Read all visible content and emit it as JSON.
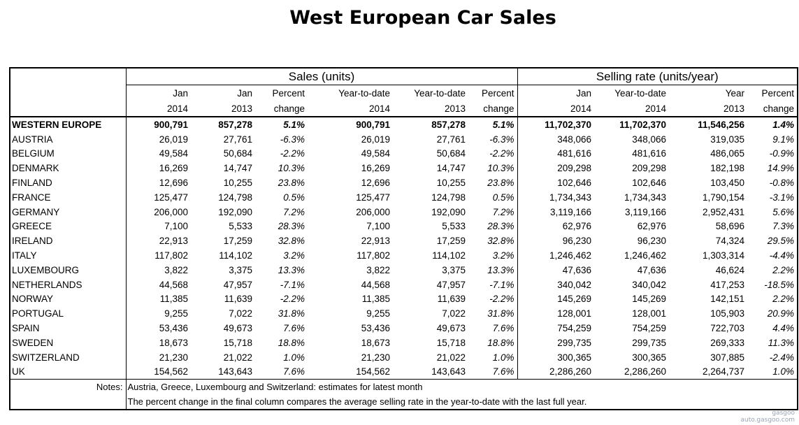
{
  "title": "West European Car Sales",
  "headers": {
    "sales_group": "Sales (units)",
    "rate_group": "Selling rate (units/year)",
    "row1": [
      "Jan",
      "Jan",
      "Percent",
      "Year-to-date",
      "Year-to-date",
      "Percent",
      "Jan",
      "Year-to-date",
      "Year",
      "Percent"
    ],
    "row2": [
      "2014",
      "2013",
      "change",
      "2014",
      "2013",
      "change",
      "2014",
      "2014",
      "2013",
      "change"
    ]
  },
  "rows": [
    {
      "country": "WESTERN EUROPE",
      "v": [
        "900,791",
        "857,278",
        "5.1%",
        "900,791",
        "857,278",
        "5.1%",
        "11,702,370",
        "11,702,370",
        "11,546,256",
        "1.4%"
      ]
    },
    {
      "country": "AUSTRIA",
      "v": [
        "26,019",
        "27,761",
        "-6.3%",
        "26,019",
        "27,761",
        "-6.3%",
        "348,066",
        "348,066",
        "319,035",
        "9.1%"
      ]
    },
    {
      "country": "BELGIUM",
      "v": [
        "49,584",
        "50,684",
        "-2.2%",
        "49,584",
        "50,684",
        "-2.2%",
        "481,616",
        "481,616",
        "486,065",
        "-0.9%"
      ]
    },
    {
      "country": "DENMARK",
      "v": [
        "16,269",
        "14,747",
        "10.3%",
        "16,269",
        "14,747",
        "10.3%",
        "209,298",
        "209,298",
        "182,198",
        "14.9%"
      ]
    },
    {
      "country": "FINLAND",
      "v": [
        "12,696",
        "10,255",
        "23.8%",
        "12,696",
        "10,255",
        "23.8%",
        "102,646",
        "102,646",
        "103,450",
        "-0.8%"
      ]
    },
    {
      "country": "FRANCE",
      "v": [
        "125,477",
        "124,798",
        "0.5%",
        "125,477",
        "124,798",
        "0.5%",
        "1,734,343",
        "1,734,343",
        "1,790,154",
        "-3.1%"
      ]
    },
    {
      "country": "GERMANY",
      "v": [
        "206,000",
        "192,090",
        "7.2%",
        "206,000",
        "192,090",
        "7.2%",
        "3,119,166",
        "3,119,166",
        "2,952,431",
        "5.6%"
      ]
    },
    {
      "country": "GREECE",
      "v": [
        "7,100",
        "5,533",
        "28.3%",
        "7,100",
        "5,533",
        "28.3%",
        "62,976",
        "62,976",
        "58,696",
        "7.3%"
      ]
    },
    {
      "country": "IRELAND",
      "v": [
        "22,913",
        "17,259",
        "32.8%",
        "22,913",
        "17,259",
        "32.8%",
        "96,230",
        "96,230",
        "74,324",
        "29.5%"
      ]
    },
    {
      "country": "ITALY",
      "v": [
        "117,802",
        "114,102",
        "3.2%",
        "117,802",
        "114,102",
        "3.2%",
        "1,246,462",
        "1,246,462",
        "1,303,314",
        "-4.4%"
      ]
    },
    {
      "country": "LUXEMBOURG",
      "v": [
        "3,822",
        "3,375",
        "13.3%",
        "3,822",
        "3,375",
        "13.3%",
        "47,636",
        "47,636",
        "46,624",
        "2.2%"
      ]
    },
    {
      "country": "NETHERLANDS",
      "v": [
        "44,568",
        "47,957",
        "-7.1%",
        "44,568",
        "47,957",
        "-7.1%",
        "340,042",
        "340,042",
        "417,253",
        "-18.5%"
      ]
    },
    {
      "country": "NORWAY",
      "v": [
        "11,385",
        "11,639",
        "-2.2%",
        "11,385",
        "11,639",
        "-2.2%",
        "145,269",
        "145,269",
        "142,151",
        "2.2%"
      ]
    },
    {
      "country": "PORTUGAL",
      "v": [
        "9,255",
        "7,022",
        "31.8%",
        "9,255",
        "7,022",
        "31.8%",
        "128,001",
        "128,001",
        "105,903",
        "20.9%"
      ]
    },
    {
      "country": "SPAIN",
      "v": [
        "53,436",
        "49,673",
        "7.6%",
        "53,436",
        "49,673",
        "7.6%",
        "754,259",
        "754,259",
        "722,703",
        "4.4%"
      ]
    },
    {
      "country": "SWEDEN",
      "v": [
        "18,673",
        "15,718",
        "18.8%",
        "18,673",
        "15,718",
        "18.8%",
        "299,735",
        "299,735",
        "269,333",
        "11.3%"
      ]
    },
    {
      "country": "SWITZERLAND",
      "v": [
        "21,230",
        "21,022",
        "1.0%",
        "21,230",
        "21,022",
        "1.0%",
        "300,365",
        "300,365",
        "307,885",
        "-2.4%"
      ]
    },
    {
      "country": "UK",
      "v": [
        "154,562",
        "143,643",
        "7.6%",
        "154,562",
        "143,643",
        "7.6%",
        "2,286,260",
        "2,286,260",
        "2,264,737",
        "1.0%"
      ]
    }
  ],
  "notes": {
    "label": "Notes:",
    "line1": "Austria, Greece, Luxembourg and Switzerland: estimates for latest month",
    "line2": "The percent change in the final column compares the average selling rate in the year-to-date with the last full year."
  },
  "watermark": {
    "brand": "gasgoo",
    "url": "auto.gasgoo.com"
  }
}
